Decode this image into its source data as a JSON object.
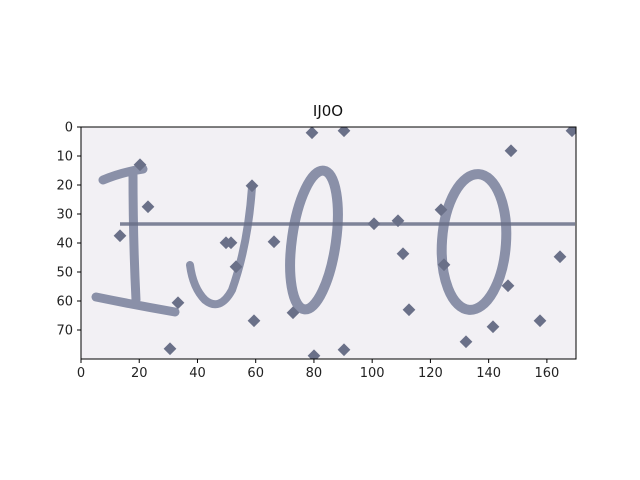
{
  "figure": {
    "title": "IJ0O",
    "image_size": [
      170,
      80
    ],
    "x_ticks": [
      "0",
      "20",
      "40",
      "60",
      "80",
      "100",
      "120",
      "140",
      "160"
    ],
    "y_ticks": [
      "0",
      "10",
      "20",
      "30",
      "40",
      "50",
      "60",
      "70"
    ],
    "background_color": "#f2f0f4",
    "ink_color": "#8a90a8",
    "dot_color": "#6a7088",
    "axis_color": "#000000"
  }
}
